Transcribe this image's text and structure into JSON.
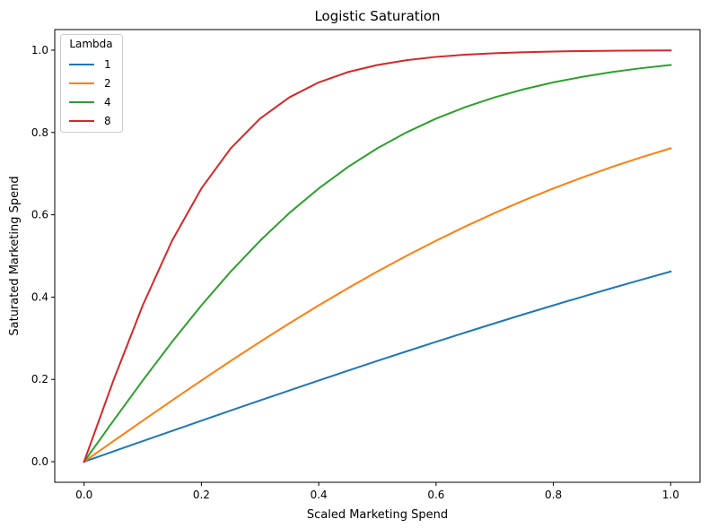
{
  "chart_data": {
    "type": "line",
    "title": "Logistic Saturation",
    "xlabel": "Scaled Marketing Spend",
    "ylabel": "Saturated Marketing Spend",
    "xlim": [
      -0.05,
      1.05
    ],
    "ylim": [
      -0.05,
      1.05
    ],
    "xticks": [
      0.0,
      0.2,
      0.4,
      0.6,
      0.8,
      1.0
    ],
    "xtick_labels": [
      "0.0",
      "0.2",
      "0.4",
      "0.6",
      "0.8",
      "1.0"
    ],
    "yticks": [
      0.0,
      0.2,
      0.4,
      0.6,
      0.8,
      1.0
    ],
    "ytick_labels": [
      "0.0",
      "0.2",
      "0.4",
      "0.6",
      "0.8",
      "1.0"
    ],
    "grid": false,
    "legend": {
      "title": "Lambda",
      "placement": "top-left"
    },
    "x": [
      0.0,
      0.05,
      0.1,
      0.15,
      0.2,
      0.25,
      0.3,
      0.35,
      0.4,
      0.45,
      0.5,
      0.55,
      0.6,
      0.65,
      0.7,
      0.75,
      0.8,
      0.85,
      0.9,
      0.95,
      1.0
    ],
    "series": [
      {
        "name": "1",
        "color": "#1f77b4",
        "values": [
          0.0,
          0.025,
          0.05,
          0.0749,
          0.0997,
          0.1244,
          0.1489,
          0.1732,
          0.1974,
          0.2213,
          0.2449,
          0.2683,
          0.2913,
          0.314,
          0.3364,
          0.3584,
          0.3799,
          0.4011,
          0.4219,
          0.4422,
          0.4621
        ]
      },
      {
        "name": "2",
        "color": "#ff7f0e",
        "values": [
          0.0,
          0.05,
          0.0997,
          0.1489,
          0.1974,
          0.2449,
          0.2913,
          0.3364,
          0.3799,
          0.4219,
          0.4621,
          0.5005,
          0.537,
          0.5717,
          0.6044,
          0.6351,
          0.664,
          0.6911,
          0.7163,
          0.7398,
          0.7616
        ]
      },
      {
        "name": "4",
        "color": "#2ca02c",
        "values": [
          0.0,
          0.0997,
          0.1974,
          0.2913,
          0.3799,
          0.4621,
          0.537,
          0.6044,
          0.664,
          0.7163,
          0.7616,
          0.8005,
          0.8337,
          0.8617,
          0.8854,
          0.9051,
          0.9217,
          0.9354,
          0.9468,
          0.9562,
          0.964
        ]
      },
      {
        "name": "8",
        "color": "#d62728",
        "values": [
          0.0,
          0.1974,
          0.3799,
          0.537,
          0.664,
          0.7616,
          0.8337,
          0.8854,
          0.9217,
          0.9468,
          0.964,
          0.9757,
          0.9837,
          0.989,
          0.9926,
          0.9951,
          0.9967,
          0.9978,
          0.9985,
          0.999,
          0.9993
        ]
      }
    ]
  }
}
